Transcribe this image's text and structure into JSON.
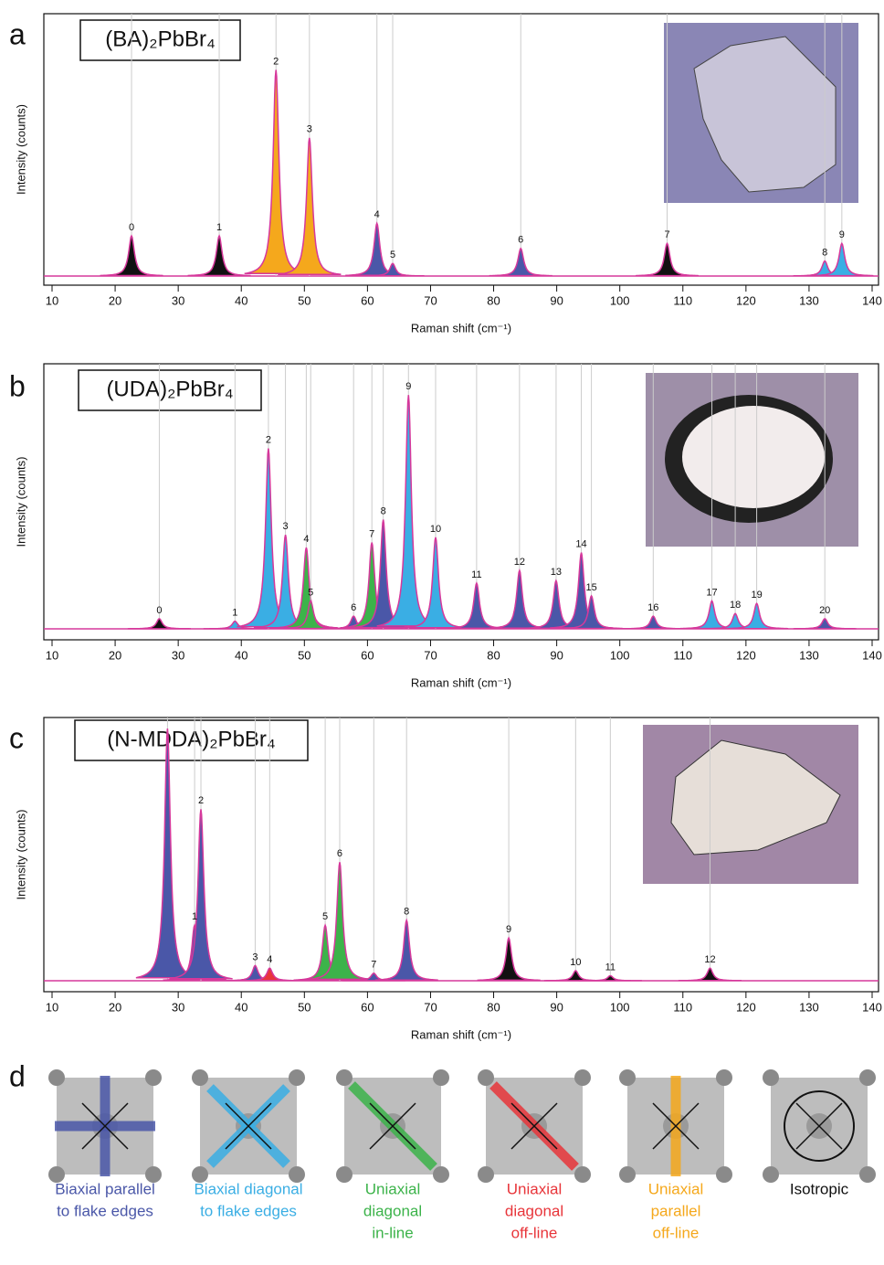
{
  "chart_data": [
    {
      "type": "spectrum",
      "panel": "a",
      "title": "(BA)₂PbBr₄",
      "x_label": "Raman shift (cm⁻¹)",
      "y_label": "Intensity (counts)",
      "xlim": [
        10,
        140
      ],
      "xticks": [
        10,
        20,
        30,
        40,
        50,
        60,
        70,
        80,
        90,
        100,
        110,
        120,
        130,
        140
      ],
      "ylim": [
        0,
        100
      ],
      "line_color": "#d6389b",
      "labels": [
        "0",
        "1",
        "2",
        "3",
        "4",
        "5",
        "6",
        "7",
        "8",
        "9"
      ],
      "x": [
        22.6,
        36.5,
        45.5,
        50.8,
        61.5,
        64,
        84.3,
        107.5,
        132.5,
        135.2
      ],
      "values": [
        16,
        16,
        82,
        55,
        21,
        5,
        11,
        13,
        6,
        13
      ],
      "colors": [
        "#111111",
        "#111111",
        "#f5a81c",
        "#f5a81c",
        "#4a57a8",
        "#4a57a8",
        "#4a57a8",
        "#111111",
        "#3aaee4",
        "#3aaee4"
      ]
    },
    {
      "type": "spectrum",
      "panel": "b",
      "title": "(UDA)₂PbBr₄",
      "x_label": "Raman shift (cm⁻¹)",
      "y_label": "Intensity (counts)",
      "xlim": [
        10,
        140
      ],
      "xticks": [
        10,
        20,
        30,
        40,
        50,
        60,
        70,
        80,
        90,
        100,
        110,
        120,
        130,
        140
      ],
      "ylim": [
        0,
        100
      ],
      "line_color": "#d6389b",
      "labels": [
        "0",
        "1",
        "2",
        "3",
        "4",
        "5",
        "6",
        "7",
        "8",
        "9",
        "10",
        "11",
        "12",
        "13",
        "14",
        "15",
        "16",
        "17",
        "18",
        "19",
        "20"
      ],
      "x": [
        27,
        39,
        44.3,
        47,
        50.3,
        51,
        57.8,
        60.7,
        62.5,
        66.5,
        70.8,
        77.3,
        84.1,
        89.9,
        93.9,
        95.5,
        105.3,
        114.6,
        118.3,
        121.7,
        132.5
      ],
      "values": [
        4,
        3,
        71,
        37,
        32,
        11,
        5,
        34,
        43,
        92,
        36,
        18,
        23,
        19,
        30,
        13,
        5,
        11,
        6,
        10,
        4
      ],
      "colors": [
        "#111111",
        "#3aaee4",
        "#3aaee4",
        "#3aaee4",
        "#3cb34a",
        "#3cb34a",
        "#4a57a8",
        "#3cb34a",
        "#4a57a8",
        "#3aaee4",
        "#3aaee4",
        "#4a57a8",
        "#4a57a8",
        "#4a57a8",
        "#4a57a8",
        "#4a57a8",
        "#4a57a8",
        "#3aaee4",
        "#3aaee4",
        "#3aaee4",
        "#4a57a8"
      ]
    },
    {
      "type": "spectrum",
      "panel": "c",
      "title": "(N-MDDA)₂PbBr₄",
      "x_label": "Raman shift (cm⁻¹)",
      "y_label": "Intensity (counts)",
      "xlim": [
        10,
        140
      ],
      "xticks": [
        10,
        20,
        30,
        40,
        50,
        60,
        70,
        80,
        90,
        100,
        110,
        120,
        130,
        140
      ],
      "ylim": [
        0,
        100
      ],
      "line_color": "#d6389b",
      "labels": [
        null,
        "1",
        "2",
        "3",
        "4",
        "5",
        "6",
        "7",
        "8",
        "9",
        "10",
        "11",
        "12"
      ],
      "x": [
        28.3,
        32.6,
        33.6,
        42.2,
        44.5,
        53.3,
        55.6,
        61,
        66.2,
        82.4,
        93,
        98.5,
        114.3
      ],
      "values": [
        100,
        22,
        68,
        6,
        5,
        22,
        47,
        3,
        24,
        17,
        4,
        2,
        5
      ],
      "colors": [
        "#4a57a8",
        "#4a57a8",
        "#4a57a8",
        "#4a57a8",
        "#e8353a",
        "#3cb34a",
        "#3cb34a",
        "#4a57a8",
        "#4a57a8",
        "#111111",
        "#111111",
        "#111111",
        "#111111"
      ]
    }
  ],
  "diagram": {
    "panel": "d",
    "items": [
      {
        "lines": [
          "Biaxial parallel",
          "to flake edges"
        ],
        "color": "#4a57a8"
      },
      {
        "lines": [
          "Biaxial diagonal",
          "to flake edges"
        ],
        "color": "#3aaee4"
      },
      {
        "lines": [
          "Uniaxial",
          "diagonal",
          "in-line"
        ],
        "color": "#3cb34a"
      },
      {
        "lines": [
          "Uniaxial",
          "diagonal",
          "off-line"
        ],
        "color": "#e8353a"
      },
      {
        "lines": [
          "Uniaxial",
          "parallel",
          "off-line"
        ],
        "color": "#f5a81c"
      },
      {
        "lines": [
          "Isotropic"
        ],
        "color": "#111111"
      }
    ]
  }
}
